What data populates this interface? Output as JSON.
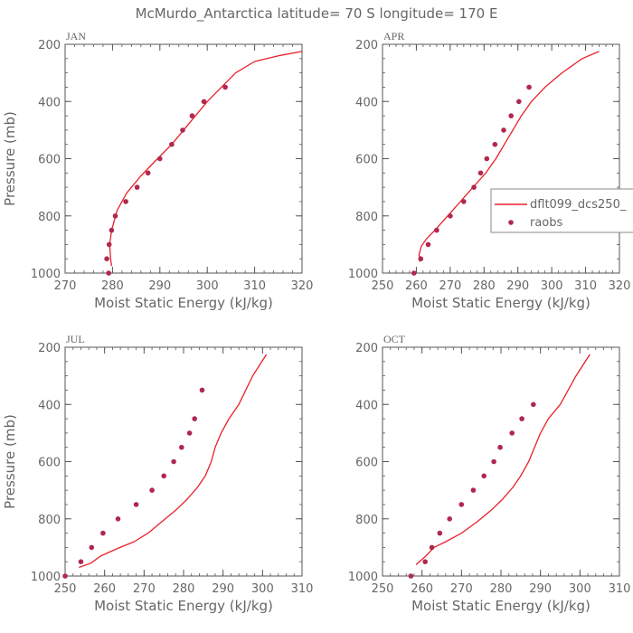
{
  "title": "McMurdo_Antarctica  latitude= 70 S longitude= 170 E",
  "colors": {
    "model": "#e8202a",
    "obs": "#b0284f",
    "axes": "#555555",
    "text": "#666666"
  },
  "legend": {
    "model_label": "dflt099_dcs250_",
    "obs_label": "raobs",
    "placement": "right of APR panel"
  },
  "chart_data": [
    {
      "type": "line",
      "panel": "JAN",
      "xlabel": "Moist Static Energy (kJ/kg)",
      "ylabel": "Pressure (mb)",
      "xlim": [
        270,
        320
      ],
      "ylim": [
        1000,
        200
      ],
      "xticks": [
        270,
        280,
        290,
        300,
        310,
        320
      ],
      "yticks": [
        200,
        400,
        600,
        800,
        1000
      ],
      "series": [
        {
          "name": "dflt099_dcs250_",
          "kind": "line",
          "x": [
            279.8,
            279.6,
            279.4,
            279.8,
            281.0,
            283.0,
            286.0,
            289.5,
            292.5,
            295.0,
            297.5,
            300.0,
            303.0,
            306.0,
            310.0,
            315.0,
            320.0
          ],
          "y": [
            975,
            950,
            900,
            850,
            780,
            720,
            660,
            600,
            550,
            500,
            450,
            400,
            350,
            300,
            260,
            240,
            225
          ]
        },
        {
          "name": "raobs",
          "kind": "scatter",
          "x": [
            279.2,
            278.8,
            279.3,
            279.8,
            280.6,
            282.8,
            285.2,
            287.5,
            290.0,
            292.5,
            294.8,
            296.8,
            299.3,
            303.8
          ],
          "y": [
            1000,
            950,
            900,
            850,
            800,
            750,
            700,
            650,
            600,
            550,
            500,
            450,
            400,
            350
          ]
        }
      ]
    },
    {
      "type": "line",
      "panel": "APR",
      "xlabel": "Moist Static Energy (kJ/kg)",
      "ylabel": "",
      "xlim": [
        250,
        320
      ],
      "ylim": [
        1000,
        200
      ],
      "xticks": [
        250,
        260,
        270,
        280,
        290,
        300,
        310,
        320
      ],
      "yticks": [
        200,
        400,
        600,
        800,
        1000
      ],
      "series": [
        {
          "name": "dflt099_dcs250_",
          "kind": "line",
          "x": [
            261.0,
            260.8,
            261.5,
            263.0,
            265.5,
            268.5,
            271.5,
            274.5,
            277.5,
            280.5,
            283.5,
            286.0,
            288.5,
            291.0,
            294.0,
            298.0,
            303.0,
            309.0,
            314.0
          ],
          "y": [
            960,
            935,
            905,
            880,
            850,
            810,
            770,
            730,
            690,
            650,
            600,
            550,
            500,
            450,
            400,
            350,
            300,
            250,
            225
          ]
        },
        {
          "name": "raobs",
          "kind": "scatter",
          "x": [
            259.3,
            261.3,
            263.5,
            266.0,
            270.0,
            274.0,
            277.0,
            279.0,
            280.8,
            283.2,
            285.8,
            288.0,
            290.3,
            293.3
          ],
          "y": [
            1000,
            950,
            900,
            850,
            800,
            750,
            700,
            650,
            600,
            550,
            500,
            450,
            400,
            350
          ]
        }
      ]
    },
    {
      "type": "line",
      "panel": "JUL",
      "xlabel": "Moist Static Energy (kJ/kg)",
      "ylabel": "Pressure (mb)",
      "xlim": [
        250,
        310
      ],
      "ylim": [
        1000,
        200
      ],
      "xticks": [
        250,
        260,
        270,
        280,
        290,
        300,
        310
      ],
      "yticks": [
        200,
        400,
        600,
        800,
        1000
      ],
      "series": [
        {
          "name": "dflt099_dcs250_",
          "kind": "line",
          "x": [
            253.5,
            256.5,
            259.0,
            263.0,
            267.5,
            271.0,
            274.5,
            278.0,
            281.0,
            283.5,
            285.5,
            287.0,
            288.0,
            289.5,
            291.5,
            294.0,
            297.5,
            301.0
          ],
          "y": [
            970,
            955,
            930,
            905,
            880,
            850,
            810,
            770,
            730,
            690,
            650,
            600,
            550,
            500,
            450,
            400,
            300,
            225
          ]
        },
        {
          "name": "raobs",
          "kind": "scatter",
          "x": [
            250.0,
            254.0,
            256.7,
            259.6,
            263.4,
            268.0,
            272.0,
            275.0,
            277.5,
            279.5,
            281.5,
            282.8,
            284.7
          ],
          "y": [
            1000,
            950,
            900,
            850,
            800,
            750,
            700,
            650,
            600,
            550,
            500,
            450,
            350
          ]
        }
      ]
    },
    {
      "type": "line",
      "panel": "OCT",
      "xlabel": "Moist Static Energy (kJ/kg)",
      "ylabel": "",
      "xlim": [
        250,
        310
      ],
      "ylim": [
        1000,
        200
      ],
      "xticks": [
        250,
        260,
        270,
        280,
        290,
        300,
        310
      ],
      "yticks": [
        200,
        400,
        600,
        800,
        1000
      ],
      "series": [
        {
          "name": "dflt099_dcs250_",
          "kind": "line",
          "x": [
            258.5,
            261.0,
            263.0,
            266.0,
            270.0,
            274.0,
            277.5,
            280.5,
            283.0,
            285.0,
            287.0,
            288.5,
            290.0,
            292.0,
            295.0,
            299.0,
            302.5
          ],
          "y": [
            960,
            930,
            900,
            880,
            850,
            810,
            770,
            730,
            690,
            650,
            600,
            550,
            500,
            450,
            400,
            300,
            225
          ]
        },
        {
          "name": "raobs",
          "kind": "scatter",
          "x": [
            257.2,
            260.8,
            262.5,
            264.5,
            267.0,
            270.0,
            273.0,
            275.7,
            278.2,
            279.8,
            282.8,
            285.3,
            288.2
          ],
          "y": [
            1000,
            950,
            900,
            850,
            800,
            750,
            700,
            650,
            600,
            550,
            500,
            450,
            400
          ]
        }
      ]
    }
  ]
}
